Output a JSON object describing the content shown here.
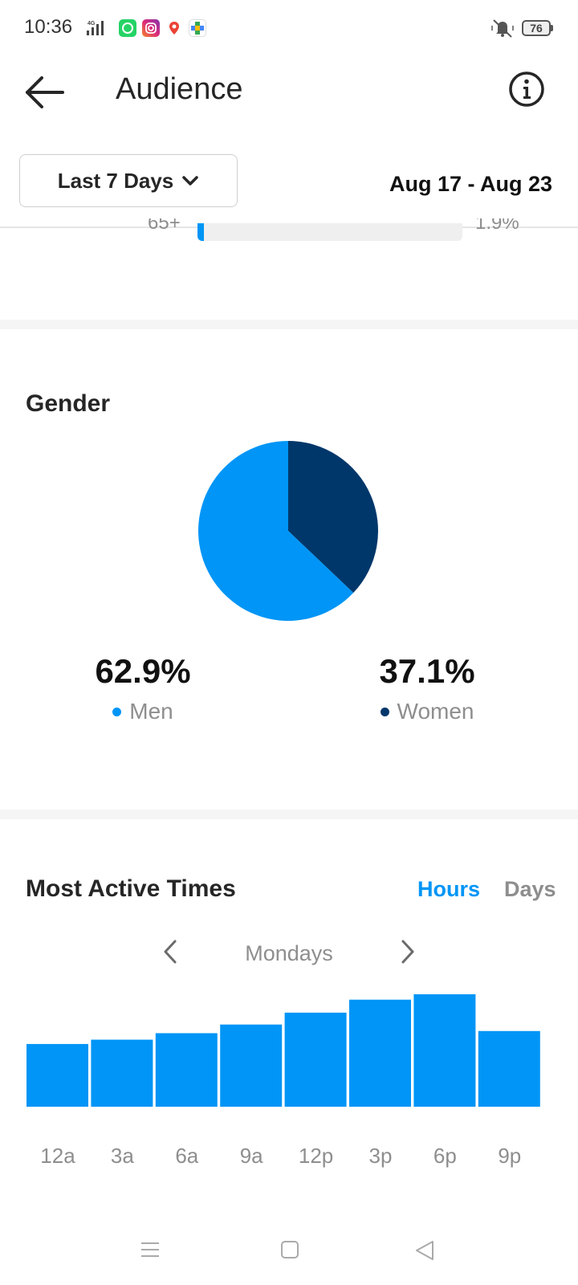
{
  "status_bar": {
    "time": "10:36",
    "network": "4G",
    "battery": "76",
    "icons": [
      "whatsapp-icon",
      "instagram-icon",
      "maps-icon",
      "games-icon",
      "vibrate-bell-icon"
    ]
  },
  "header": {
    "title": "Audience",
    "back_icon": "back-arrow-icon",
    "info_icon": "info-icon"
  },
  "date_range": {
    "selected": "Last 7 Days",
    "dates": "Aug 17 - Aug 23"
  },
  "age_partial": {
    "label": "65+",
    "percent": "1.9%",
    "fraction": 0.019
  },
  "gender": {
    "title": "Gender",
    "men": {
      "value": "62.9%",
      "label": "Men",
      "color": "#0095f6"
    },
    "women": {
      "value": "37.1%",
      "label": "Women",
      "color": "#00376b"
    }
  },
  "most_active": {
    "title": "Most Active Times",
    "tab_hours": "Hours",
    "tab_days": "Days",
    "day": "Mondays"
  },
  "chart_data": [
    {
      "type": "pie",
      "title": "Gender",
      "categories": [
        "Men",
        "Women"
      ],
      "values": [
        62.9,
        37.1
      ],
      "colors": [
        "#0095f6",
        "#00376b"
      ]
    },
    {
      "type": "bar",
      "title": "Most Active Times",
      "categories": [
        "12a",
        "3a",
        "6a",
        "9a",
        "12p",
        "3p",
        "6p",
        "9p"
      ],
      "values": [
        58,
        62,
        68,
        76,
        87,
        99,
        104,
        70
      ],
      "color": "#0095f6"
    }
  ],
  "nav_bar": {
    "icons": [
      "menu-icon",
      "home-square-icon",
      "back-triangle-icon"
    ]
  }
}
